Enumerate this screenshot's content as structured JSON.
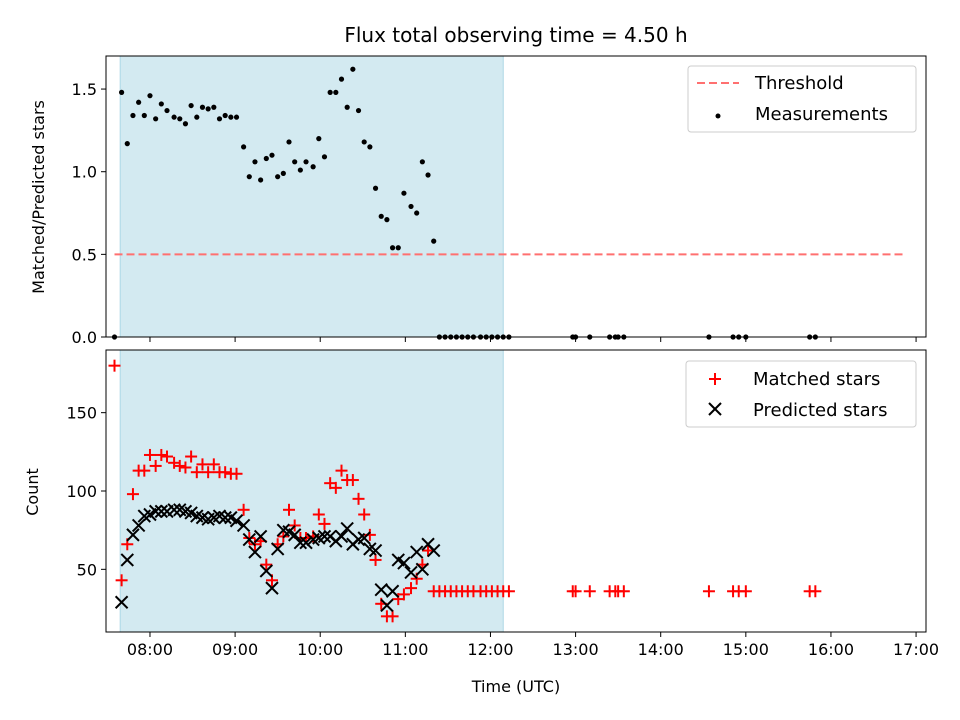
{
  "colors": {
    "shade": "#d3eaf1",
    "threshold": "#ff7070",
    "measurement": "#000000",
    "matched": "#ff0000",
    "predicted": "#000000"
  },
  "chart_data": [
    {
      "panel": "top",
      "type": "scatter",
      "title": "Flux total observing time = 4.50 h",
      "xlabel": "",
      "ylabel": "Matched/Predicted stars",
      "xlim": [
        "07:29",
        "17:07"
      ],
      "ylim": [
        0,
        1.7
      ],
      "yticks": [
        "0.0",
        "0.5",
        "1.0",
        "1.5"
      ],
      "yticks_values": [
        0,
        0.5,
        1.0,
        1.5
      ],
      "shaded_interval": [
        "07:39",
        "12:09"
      ],
      "threshold": {
        "name": "Threshold",
        "value": 0.5,
        "x_range": [
          "07:35",
          "16:52"
        ]
      },
      "legend": {
        "position": "top-right",
        "entries": [
          "Threshold",
          "Measurements"
        ]
      },
      "series": [
        {
          "name": "Measurements",
          "points": [
            [
              "07:35",
              0.0
            ],
            [
              "07:40",
              1.48
            ],
            [
              "07:44",
              1.17
            ],
            [
              "07:48",
              1.34
            ],
            [
              "07:52",
              1.42
            ],
            [
              "07:56",
              1.34
            ],
            [
              "08:00",
              1.46
            ],
            [
              "08:04",
              1.32
            ],
            [
              "08:08",
              1.41
            ],
            [
              "08:12",
              1.37
            ],
            [
              "08:17",
              1.33
            ],
            [
              "08:21",
              1.32
            ],
            [
              "08:25",
              1.29
            ],
            [
              "08:29",
              1.4
            ],
            [
              "08:33",
              1.33
            ],
            [
              "08:37",
              1.39
            ],
            [
              "08:41",
              1.38
            ],
            [
              "08:45",
              1.39
            ],
            [
              "08:49",
              1.32
            ],
            [
              "08:53",
              1.34
            ],
            [
              "08:57",
              1.33
            ],
            [
              "09:01",
              1.33
            ],
            [
              "09:06",
              1.15
            ],
            [
              "09:10",
              0.97
            ],
            [
              "09:14",
              1.06
            ],
            [
              "09:18",
              0.95
            ],
            [
              "09:22",
              1.08
            ],
            [
              "09:26",
              1.1
            ],
            [
              "09:30",
              0.97
            ],
            [
              "09:34",
              0.99
            ],
            [
              "09:38",
              1.18
            ],
            [
              "09:42",
              1.06
            ],
            [
              "09:46",
              1.01
            ],
            [
              "09:50",
              1.06
            ],
            [
              "09:55",
              1.03
            ],
            [
              "09:59",
              1.2
            ],
            [
              "10:03",
              1.09
            ],
            [
              "10:07",
              1.48
            ],
            [
              "10:11",
              1.48
            ],
            [
              "10:15",
              1.56
            ],
            [
              "10:19",
              1.39
            ],
            [
              "10:23",
              1.62
            ],
            [
              "10:27",
              1.37
            ],
            [
              "10:31",
              1.18
            ],
            [
              "10:35",
              1.15
            ],
            [
              "10:39",
              0.9
            ],
            [
              "10:43",
              0.73
            ],
            [
              "10:47",
              0.71
            ],
            [
              "10:51",
              0.54
            ],
            [
              "10:55",
              0.54
            ],
            [
              "10:59",
              0.87
            ],
            [
              "11:04",
              0.79
            ],
            [
              "11:08",
              0.75
            ],
            [
              "11:12",
              1.06
            ],
            [
              "11:16",
              0.98
            ],
            [
              "11:20",
              0.58
            ],
            [
              "11:24",
              0.0
            ],
            [
              "11:28",
              0.0
            ],
            [
              "11:32",
              0.0
            ],
            [
              "11:36",
              0.0
            ],
            [
              "11:40",
              0.0
            ],
            [
              "11:44",
              0.0
            ],
            [
              "11:48",
              0.0
            ],
            [
              "11:53",
              0.0
            ],
            [
              "11:57",
              0.0
            ],
            [
              "12:01",
              0.0
            ],
            [
              "12:05",
              0.0
            ],
            [
              "12:09",
              0.0
            ],
            [
              "12:13",
              0.0
            ],
            [
              "12:58",
              0.0
            ],
            [
              "13:00",
              0.0
            ],
            [
              "13:10",
              0.0
            ],
            [
              "13:24",
              0.0
            ],
            [
              "13:28",
              0.0
            ],
            [
              "13:30",
              0.0
            ],
            [
              "13:34",
              0.0
            ],
            [
              "14:34",
              0.0
            ],
            [
              "14:51",
              0.0
            ],
            [
              "14:55",
              0.0
            ],
            [
              "15:00",
              0.0
            ],
            [
              "15:45",
              0.0
            ],
            [
              "15:49",
              0.0
            ]
          ]
        }
      ]
    },
    {
      "panel": "bottom",
      "type": "scatter",
      "title": "",
      "xlabel": "Time (UTC)",
      "ylabel": "Count",
      "xlim": [
        "07:29",
        "17:07"
      ],
      "ylim": [
        10,
        190
      ],
      "yticks": [
        "50",
        "100",
        "150"
      ],
      "yticks_values": [
        50,
        100,
        150
      ],
      "xticks": [
        "08:00",
        "09:00",
        "10:00",
        "11:00",
        "12:00",
        "13:00",
        "14:00",
        "15:00",
        "16:00",
        "17:00"
      ],
      "shaded_interval": [
        "07:39",
        "12:09"
      ],
      "legend": {
        "position": "top-right",
        "entries": [
          "Matched stars",
          "Predicted stars"
        ]
      },
      "series": [
        {
          "name": "Matched stars",
          "marker": "plus",
          "points": [
            [
              "07:35",
              180
            ],
            [
              "07:40",
              43
            ],
            [
              "07:44",
              66
            ],
            [
              "07:48",
              98
            ],
            [
              "07:52",
              113
            ],
            [
              "07:56",
              113
            ],
            [
              "08:00",
              123
            ],
            [
              "08:04",
              116
            ],
            [
              "08:08",
              123
            ],
            [
              "08:12",
              122
            ],
            [
              "08:17",
              118
            ],
            [
              "08:21",
              116
            ],
            [
              "08:25",
              115
            ],
            [
              "08:29",
              122
            ],
            [
              "08:33",
              112
            ],
            [
              "08:37",
              117
            ],
            [
              "08:41",
              112
            ],
            [
              "08:45",
              117
            ],
            [
              "08:49",
              112
            ],
            [
              "08:53",
              112
            ],
            [
              "08:57",
              111
            ],
            [
              "09:01",
              111
            ],
            [
              "09:06",
              88
            ],
            [
              "09:10",
              70
            ],
            [
              "09:14",
              66
            ],
            [
              "09:18",
              68
            ],
            [
              "09:22",
              53
            ],
            [
              "09:26",
              43
            ],
            [
              "09:30",
              66
            ],
            [
              "09:34",
              71
            ],
            [
              "09:38",
              88
            ],
            [
              "09:42",
              78
            ],
            [
              "09:46",
              70
            ],
            [
              "09:50",
              70
            ],
            [
              "09:55",
              71
            ],
            [
              "09:59",
              85
            ],
            [
              "10:03",
              79
            ],
            [
              "10:07",
              105
            ],
            [
              "10:11",
              102
            ],
            [
              "10:15",
              113
            ],
            [
              "10:19",
              107
            ],
            [
              "10:23",
              107
            ],
            [
              "10:27",
              95
            ],
            [
              "10:31",
              85
            ],
            [
              "10:35",
              72
            ],
            [
              "10:39",
              56
            ],
            [
              "10:43",
              28
            ],
            [
              "10:47",
              20
            ],
            [
              "10:51",
              20
            ],
            [
              "10:55",
              31
            ],
            [
              "10:59",
              34
            ],
            [
              "11:04",
              38
            ],
            [
              "11:08",
              44
            ],
            [
              "11:12",
              53
            ],
            [
              "11:16",
              62
            ],
            [
              "11:20",
              36
            ],
            [
              "11:24",
              36
            ],
            [
              "11:28",
              36
            ],
            [
              "11:32",
              36
            ],
            [
              "11:36",
              36
            ],
            [
              "11:40",
              36
            ],
            [
              "11:44",
              36
            ],
            [
              "11:48",
              36
            ],
            [
              "11:53",
              36
            ],
            [
              "11:57",
              36
            ],
            [
              "12:01",
              36
            ],
            [
              "12:05",
              36
            ],
            [
              "12:09",
              36
            ],
            [
              "12:13",
              36
            ],
            [
              "12:58",
              36
            ],
            [
              "13:00",
              36
            ],
            [
              "13:10",
              36
            ],
            [
              "13:24",
              36
            ],
            [
              "13:28",
              36
            ],
            [
              "13:30",
              36
            ],
            [
              "13:34",
              36
            ],
            [
              "14:34",
              36
            ],
            [
              "14:51",
              36
            ],
            [
              "14:55",
              36
            ],
            [
              "15:00",
              36
            ],
            [
              "15:45",
              36
            ],
            [
              "15:49",
              36
            ]
          ]
        },
        {
          "name": "Predicted stars",
          "marker": "x",
          "points": [
            [
              "07:40",
              29
            ],
            [
              "07:44",
              56
            ],
            [
              "07:48",
              72
            ],
            [
              "07:52",
              78
            ],
            [
              "07:56",
              84
            ],
            [
              "08:00",
              85
            ],
            [
              "08:04",
              87
            ],
            [
              "08:08",
              87
            ],
            [
              "08:12",
              87
            ],
            [
              "08:17",
              88
            ],
            [
              "08:21",
              88
            ],
            [
              "08:25",
              87
            ],
            [
              "08:29",
              86
            ],
            [
              "08:33",
              84
            ],
            [
              "08:37",
              83
            ],
            [
              "08:41",
              82
            ],
            [
              "08:45",
              83
            ],
            [
              "08:49",
              84
            ],
            [
              "08:53",
              83
            ],
            [
              "08:57",
              83
            ],
            [
              "09:01",
              81
            ],
            [
              "09:06",
              78
            ],
            [
              "09:10",
              69
            ],
            [
              "09:14",
              61
            ],
            [
              "09:18",
              71
            ],
            [
              "09:22",
              49
            ],
            [
              "09:26",
              38
            ],
            [
              "09:30",
              63
            ],
            [
              "09:34",
              75
            ],
            [
              "09:38",
              74
            ],
            [
              "09:42",
              72
            ],
            [
              "09:46",
              67
            ],
            [
              "09:50",
              67
            ],
            [
              "09:55",
              69
            ],
            [
              "09:59",
              70
            ],
            [
              "10:03",
              71
            ],
            [
              "10:07",
              71
            ],
            [
              "10:11",
              68
            ],
            [
              "10:15",
              71
            ],
            [
              "10:19",
              76
            ],
            [
              "10:23",
              66
            ],
            [
              "10:27",
              69
            ],
            [
              "10:31",
              70
            ],
            [
              "10:35",
              63
            ],
            [
              "10:39",
              62
            ],
            [
              "10:43",
              37
            ],
            [
              "10:47",
              27
            ],
            [
              "10:51",
              36
            ],
            [
              "10:55",
              56
            ],
            [
              "10:59",
              54
            ],
            [
              "11:04",
              48
            ],
            [
              "11:08",
              61
            ],
            [
              "11:12",
              50
            ],
            [
              "11:16",
              66
            ],
            [
              "11:20",
              62
            ]
          ]
        }
      ]
    }
  ]
}
